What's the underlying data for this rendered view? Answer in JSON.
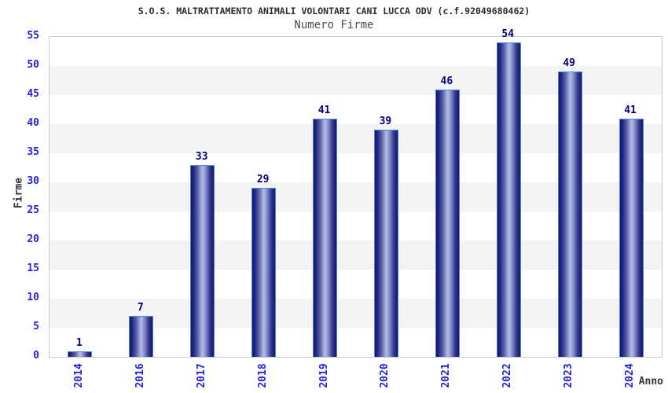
{
  "title": "S.O.S. MALTRATTAMENTO ANIMALI VOLONTARI CANI LUCCA ODV (c.f.92049680462)",
  "subtitle": "Numero Firme",
  "chart_data": {
    "type": "bar",
    "title": "S.O.S. MALTRATTAMENTO ANIMALI VOLONTARI CANI LUCCA ODV (c.f.92049680462)",
    "subtitle": "Numero Firme",
    "categories": [
      "2014",
      "2016",
      "2017",
      "2018",
      "2019",
      "2020",
      "2021",
      "2022",
      "2023",
      "2024"
    ],
    "values": [
      1,
      7,
      33,
      29,
      41,
      39,
      46,
      54,
      49,
      41
    ],
    "xlabel": "Anno",
    "ylabel": "Firme",
    "ylim": [
      0,
      55
    ],
    "ytick_step": 5,
    "yticks": [
      0,
      5,
      10,
      15,
      20,
      25,
      30,
      35,
      40,
      45,
      50,
      55
    ],
    "legend": "none",
    "grid": "horizontal-alternating-bands",
    "colors": {
      "bar_dark": "#16166a",
      "bar_highlight": "#b0bae4",
      "bar_outline": "#4a87e2",
      "value_label": "#00007f",
      "tick_label": "#2222dd",
      "axis_label": "#333333",
      "title_text": "#2b2b2b",
      "band_gray": "#f3f3f3",
      "plot_border": "#c8c8c8",
      "background": "#ffffff"
    }
  }
}
